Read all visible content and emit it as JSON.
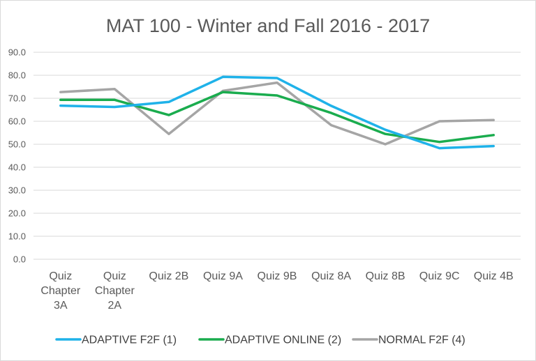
{
  "chart_data": {
    "type": "line",
    "title": "MAT 100 - Winter and Fall 2016 - 2017",
    "xlabel": "",
    "ylabel": "",
    "ylim": [
      0,
      90
    ],
    "ytick_step": 10,
    "ytick_labels": [
      "0.0",
      "10.0",
      "20.0",
      "30.0",
      "40.0",
      "50.0",
      "60.0",
      "70.0",
      "80.0",
      "90.0"
    ],
    "grid": true,
    "legend_position": "bottom",
    "categories": [
      [
        "Quiz",
        "Chapter",
        "3A"
      ],
      [
        "Quiz",
        "Chapter",
        "2A"
      ],
      [
        "Quiz 2B"
      ],
      [
        "Quiz 9A"
      ],
      [
        "Quiz 9B"
      ],
      [
        "Quiz 8A"
      ],
      [
        "Quiz 8B"
      ],
      [
        "Quiz 9C"
      ],
      [
        "Quiz 4B"
      ]
    ],
    "series": [
      {
        "name": "ADAPTIVE F2F (1)",
        "color": "#1fb2e9",
        "values": [
          66.8,
          66.2,
          68.4,
          79.3,
          78.8,
          66.7,
          56.3,
          48.3,
          49.2
        ]
      },
      {
        "name": "ADAPTIVE ONLINE (2)",
        "color": "#1aac4e",
        "values": [
          69.3,
          69.3,
          62.7,
          72.7,
          71.2,
          63.6,
          54.5,
          51.0,
          54.0
        ]
      },
      {
        "name": "NORMAL F2F (4)",
        "color": "#a5a5a5",
        "values": [
          72.7,
          74.0,
          54.5,
          73.2,
          76.8,
          58.3,
          50.0,
          60.0,
          60.5
        ]
      }
    ]
  }
}
